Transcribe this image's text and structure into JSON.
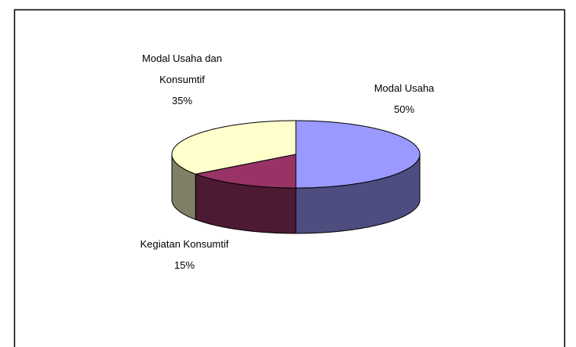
{
  "chart_data": {
    "type": "pie3d",
    "categories": [
      "Modal Usaha",
      "Kegiatan Konsumtif",
      "Modal Usaha dan Konsumtif"
    ],
    "values": [
      50,
      15,
      35
    ],
    "value_labels": [
      "50%",
      "15%",
      "35%"
    ],
    "colors": [
      "#9999ff",
      "#993366",
      "#ffffcc"
    ]
  }
}
